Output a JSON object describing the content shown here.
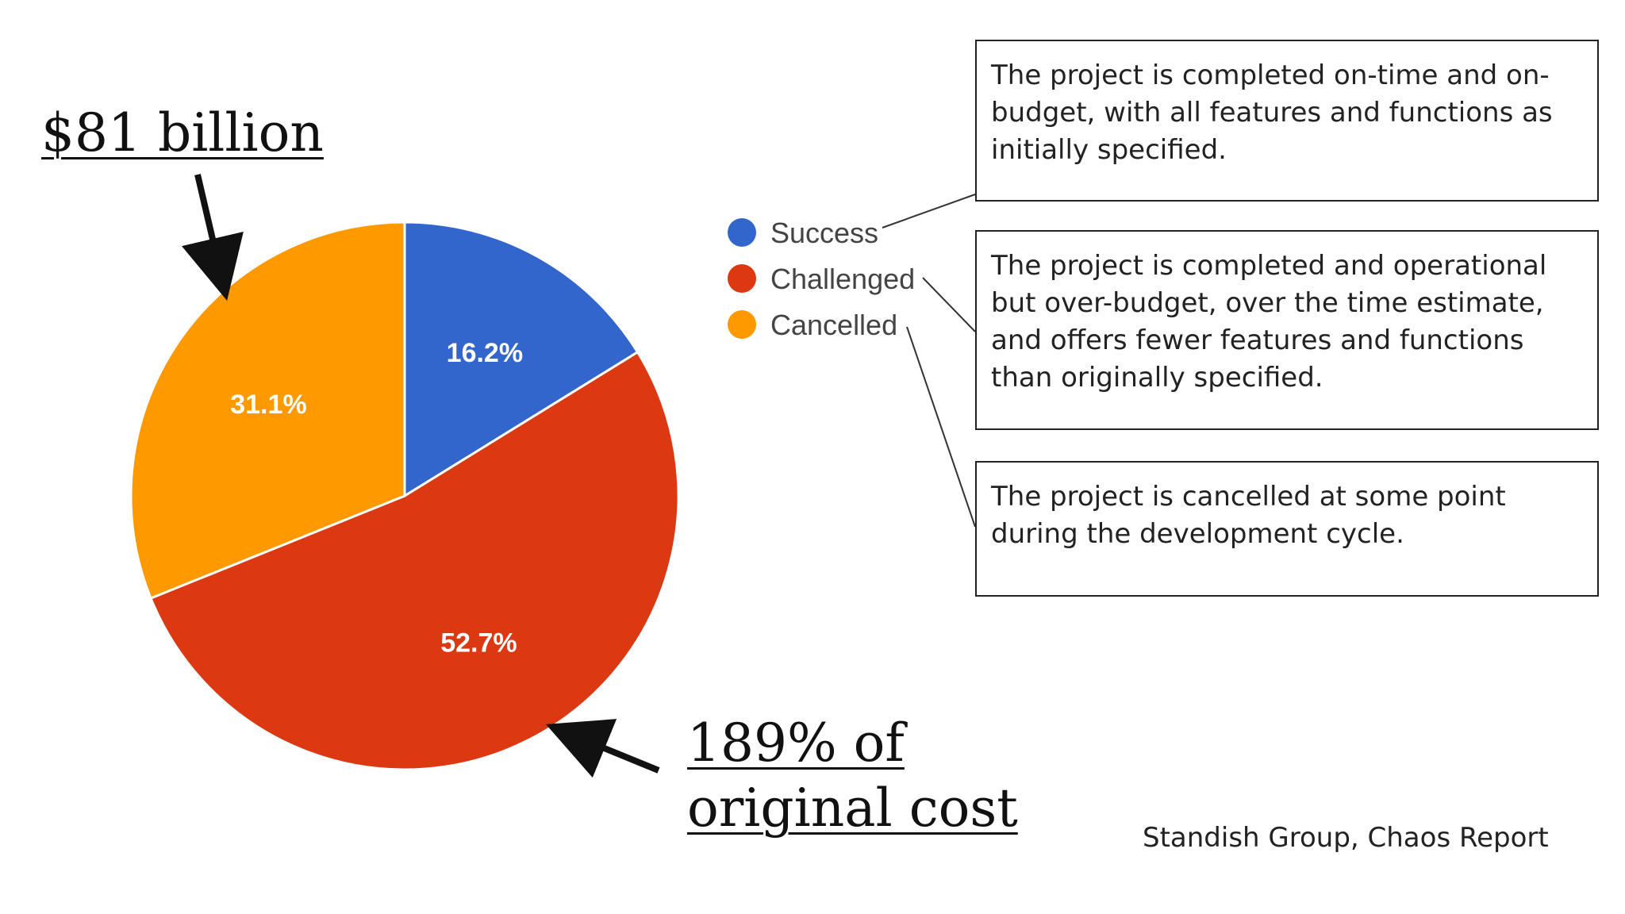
{
  "chart_data": {
    "type": "pie",
    "title": "",
    "legend_position": "right",
    "slices": [
      {
        "label": "Success",
        "value": 16.2,
        "value_label": "16.2%",
        "color": "#3366cc"
      },
      {
        "label": "Challenged",
        "value": 52.7,
        "value_label": "52.7%",
        "color": "#dc3912"
      },
      {
        "label": "Cancelled",
        "value": 31.1,
        "value_label": "31.1%",
        "color": "#ff9900"
      }
    ]
  },
  "annotations": {
    "cancelled_cost": "$81 billion",
    "challenged_cost_line1": "189% of",
    "challenged_cost_line2": "original cost"
  },
  "definitions": {
    "success": "The project is completed on-time and on-budget, with all features and functions as initially specified.",
    "challenged": "The project is completed and operational but over-budget, over the time estimate, and offers fewer features and functions than originally specified.",
    "cancelled": "The project is cancelled at some point during the development cycle."
  },
  "source": "Standish Group, Chaos Report",
  "colors": {
    "arrow": "#111111",
    "connector": "#333333",
    "box_border": "#222222"
  }
}
